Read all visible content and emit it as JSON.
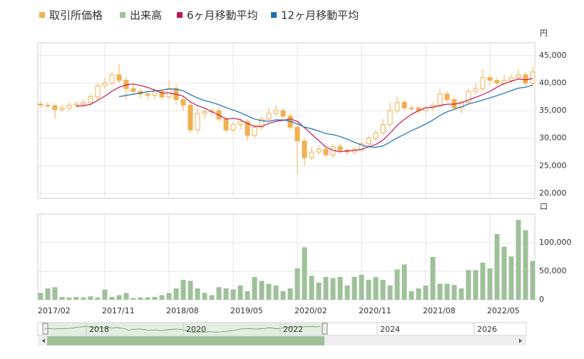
{
  "legend": [
    "取引所価格",
    "出来高",
    "6ヶ月移動平均",
    "12ヶ月移動平均"
  ],
  "chart_data": [
    {
      "type": "candlestick",
      "unit": "円",
      "categories": [
        "2017/02",
        "2017/03",
        "2017/04",
        "2017/05",
        "2017/06",
        "2017/07",
        "2017/08",
        "2017/09",
        "2017/10",
        "2017/11",
        "2017/12",
        "2018/01",
        "2018/02",
        "2018/03",
        "2018/04",
        "2018/05",
        "2018/06",
        "2018/07",
        "2018/08",
        "2018/09",
        "2018/10",
        "2018/11",
        "2018/12",
        "2019/01",
        "2019/02",
        "2019/03",
        "2019/04",
        "2019/05",
        "2019/06",
        "2019/07",
        "2019/08",
        "2019/09",
        "2019/10",
        "2019/11",
        "2019/12",
        "2020/01",
        "2020/02",
        "2020/03",
        "2020/04",
        "2020/05",
        "2020/06",
        "2020/07",
        "2020/08",
        "2020/09",
        "2020/10",
        "2020/11",
        "2020/12",
        "2021/01",
        "2021/02",
        "2021/03",
        "2021/04",
        "2021/05",
        "2021/06",
        "2021/07",
        "2021/08",
        "2021/09",
        "2021/10",
        "2021/11",
        "2021/12",
        "2022/01",
        "2022/02",
        "2022/03",
        "2022/04",
        "2022/05",
        "2022/06",
        "2022/07",
        "2022/08",
        "2022/09",
        "2022/10",
        "2022/11"
      ],
      "xticks": [
        "2017/02",
        "2017/11",
        "2018/08",
        "2019/05",
        "2020/02",
        "2020/11",
        "2021/08",
        "2022/05"
      ],
      "color": "#f0b050",
      "open": [
        36200,
        36000,
        35900,
        35200,
        35500,
        36000,
        36200,
        36500,
        37500,
        39500,
        40000,
        41500,
        40500,
        39000,
        38500,
        38000,
        37800,
        38500,
        37500,
        39000,
        37000,
        36000,
        31500,
        34500,
        34800,
        35000,
        33500,
        31500,
        32500,
        33000,
        30500,
        32000,
        33500,
        34500,
        35000,
        34000,
        32000,
        29500,
        26500,
        27500,
        28000,
        27000,
        28500,
        27800,
        27500,
        28000,
        29000,
        30000,
        31000,
        32500,
        35000,
        36500,
        35500,
        35500,
        35000,
        35500,
        36000,
        38000,
        37000,
        35500,
        36500,
        38500,
        39000,
        41000,
        40500,
        40000,
        40500,
        41000,
        41500,
        40000
      ],
      "high": [
        36700,
        36500,
        36200,
        36000,
        36500,
        36700,
        37000,
        38000,
        40000,
        41000,
        42000,
        43500,
        41000,
        39800,
        39000,
        38800,
        39200,
        39000,
        40500,
        39800,
        37500,
        36500,
        35500,
        35500,
        35500,
        35500,
        34000,
        33000,
        33500,
        33500,
        32500,
        34000,
        35500,
        36000,
        35500,
        34500,
        32500,
        30000,
        28500,
        28500,
        28500,
        29000,
        29000,
        28300,
        28500,
        29500,
        30500,
        31500,
        33500,
        36500,
        37500,
        37000,
        36000,
        36000,
        36000,
        36500,
        39000,
        38500,
        37500,
        37000,
        39000,
        40000,
        42500,
        41500,
        41000,
        41500,
        41500,
        42500,
        42000,
        43000
      ],
      "low": [
        35500,
        35400,
        33500,
        34800,
        35000,
        35600,
        35700,
        36000,
        37000,
        39000,
        39500,
        40000,
        37000,
        37800,
        37200,
        37000,
        37000,
        37000,
        37000,
        36000,
        35000,
        31000,
        31000,
        33500,
        34000,
        33000,
        31000,
        31000,
        31500,
        29500,
        30000,
        31500,
        33000,
        34000,
        33500,
        31500,
        23500,
        25000,
        26000,
        27000,
        26500,
        26500,
        27300,
        27000,
        27000,
        27500,
        28500,
        29500,
        30500,
        32000,
        34500,
        35000,
        35000,
        34500,
        34500,
        35000,
        35500,
        36500,
        35000,
        34500,
        36000,
        38000,
        38500,
        39500,
        39500,
        39500,
        40000,
        40500,
        39500,
        39500
      ],
      "close": [
        36000,
        35900,
        35200,
        35500,
        36000,
        36200,
        36500,
        37500,
        39500,
        40000,
        41500,
        40500,
        39000,
        38500,
        38000,
        37800,
        38500,
        37500,
        39000,
        37000,
        36000,
        31500,
        34500,
        34800,
        35000,
        33500,
        31500,
        32500,
        33000,
        30500,
        32000,
        33500,
        34500,
        35000,
        34000,
        32000,
        29500,
        26500,
        27500,
        28000,
        27000,
        28500,
        27800,
        27500,
        28000,
        29000,
        30000,
        31000,
        32500,
        35000,
        36500,
        35500,
        35500,
        35000,
        35500,
        36000,
        38000,
        37000,
        35500,
        36500,
        38500,
        39000,
        41000,
        40500,
        40000,
        40500,
        41000,
        41500,
        40000,
        42000
      ],
      "series": [
        {
          "name": "6ヶ月移動平均",
          "color": "#c0185a",
          "values": [
            null,
            null,
            null,
            null,
            null,
            35800,
            35900,
            36150,
            36870,
            37620,
            38530,
            39250,
            39670,
            39830,
            39580,
            39220,
            38720,
            38220,
            38220,
            37970,
            37630,
            36580,
            35920,
            35470,
            34800,
            34220,
            33470,
            33630,
            33380,
            32670,
            32170,
            32170,
            32670,
            33080,
            33250,
            33500,
            33080,
            31920,
            30750,
            29580,
            28420,
            27830,
            27550,
            27720,
            27800,
            27970,
            28470,
            28880,
            29670,
            30920,
            32330,
            33420,
            34330,
            35000,
            35500,
            35670,
            35920,
            36170,
            36170,
            36420,
            36920,
            37420,
            37920,
            38500,
            39250,
            39920,
            40330,
            40750,
            40580,
            40830
          ]
        },
        {
          "name": "12ヶ月移動平均",
          "color": "#1f6fb0",
          "values": [
            null,
            null,
            null,
            null,
            null,
            null,
            null,
            null,
            null,
            null,
            null,
            37530,
            37780,
            37990,
            38230,
            38420,
            38630,
            38730,
            38940,
            38900,
            38610,
            37900,
            37320,
            36840,
            36510,
            36090,
            35550,
            35110,
            34650,
            34070,
            33480,
            33190,
            33070,
            33360,
            33320,
            33080,
            32630,
            32040,
            31710,
            31330,
            30830,
            30670,
            30320,
            29820,
            29280,
            28780,
            28440,
            28360,
            28610,
            29320,
            30070,
            30690,
            31400,
            31940,
            32580,
            33290,
            34130,
            34790,
            35250,
            35710,
            36210,
            36540,
            36920,
            37330,
            37710,
            38170,
            38630,
            39080,
            39250,
            39670
          ]
        }
      ],
      "ylim": [
        19100,
        47300
      ],
      "yticks": [
        {
          "value": 20000,
          "label": "20,000"
        },
        {
          "value": 25000,
          "label": "25,000"
        },
        {
          "value": 30000,
          "label": "30,000"
        },
        {
          "value": 35000,
          "label": "35,000"
        },
        {
          "value": 40000,
          "label": "40,000"
        },
        {
          "value": 45000,
          "label": "45,000"
        }
      ],
      "grid": true
    },
    {
      "type": "bar",
      "unit": "口",
      "name": "出来高",
      "color": "#9fc19a",
      "values": [
        12000,
        20000,
        22000,
        5000,
        4000,
        5000,
        4000,
        6000,
        4000,
        18000,
        5000,
        8000,
        12000,
        3000,
        4000,
        4000,
        5000,
        8000,
        12000,
        20000,
        35000,
        33000,
        20000,
        12000,
        8000,
        22000,
        20000,
        18000,
        25000,
        15000,
        40000,
        33000,
        28000,
        25000,
        15000,
        20000,
        55000,
        92000,
        42000,
        30000,
        40000,
        38000,
        40000,
        25000,
        40000,
        44000,
        35000,
        40000,
        35000,
        25000,
        53000,
        62000,
        15000,
        20000,
        25000,
        75000,
        28000,
        28000,
        26000,
        20000,
        52000,
        52000,
        65000,
        55000,
        115000,
        93000,
        76000,
        140000,
        122000,
        68000
      ],
      "ylim": [
        0,
        150000
      ],
      "yticks": [
        0,
        {
          "value": 50000,
          "label": "50,000"
        },
        {
          "value": 100000,
          "label": "100,000"
        }
      ],
      "grid": true
    }
  ],
  "navigator": {
    "years": [
      "2018",
      "2020",
      "2022",
      "2024",
      "2026"
    ]
  }
}
